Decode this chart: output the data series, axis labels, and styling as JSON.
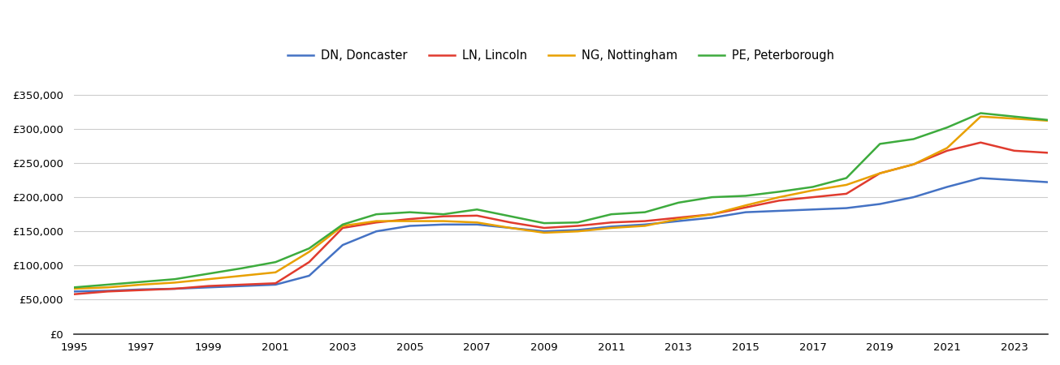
{
  "legend_labels": [
    "DN, Doncaster",
    "LN, Lincoln",
    "NG, Nottingham",
    "PE, Peterborough"
  ],
  "legend_colors": [
    "#4472c4",
    "#e03b2e",
    "#e8a000",
    "#3dab3d"
  ],
  "years": [
    1995,
    1996,
    1997,
    1998,
    1999,
    2000,
    2001,
    2002,
    2003,
    2004,
    2005,
    2006,
    2007,
    2008,
    2009,
    2010,
    2011,
    2012,
    2013,
    2014,
    2015,
    2016,
    2017,
    2018,
    2019,
    2020,
    2021,
    2022,
    2023,
    2024
  ],
  "DN": [
    62000,
    63000,
    65000,
    66000,
    68000,
    70000,
    72000,
    85000,
    130000,
    150000,
    158000,
    160000,
    160000,
    155000,
    150000,
    152000,
    157000,
    160000,
    165000,
    170000,
    178000,
    180000,
    182000,
    184000,
    190000,
    200000,
    215000,
    228000,
    225000,
    222000
  ],
  "LN": [
    58000,
    62000,
    64000,
    66000,
    70000,
    72000,
    74000,
    105000,
    155000,
    163000,
    168000,
    172000,
    173000,
    163000,
    155000,
    158000,
    163000,
    165000,
    170000,
    175000,
    185000,
    195000,
    200000,
    205000,
    235000,
    248000,
    268000,
    280000,
    268000,
    265000
  ],
  "NG": [
    66000,
    68000,
    72000,
    75000,
    80000,
    85000,
    90000,
    120000,
    158000,
    165000,
    165000,
    165000,
    163000,
    155000,
    148000,
    150000,
    155000,
    158000,
    168000,
    175000,
    188000,
    200000,
    210000,
    218000,
    235000,
    248000,
    272000,
    318000,
    315000,
    312000
  ],
  "PE": [
    68000,
    72000,
    76000,
    80000,
    88000,
    96000,
    105000,
    125000,
    160000,
    175000,
    178000,
    175000,
    182000,
    172000,
    162000,
    163000,
    175000,
    178000,
    192000,
    200000,
    202000,
    208000,
    215000,
    228000,
    278000,
    285000,
    302000,
    323000,
    318000,
    313000
  ],
  "ylim": [
    0,
    375000
  ],
  "yticks": [
    0,
    50000,
    100000,
    150000,
    200000,
    250000,
    300000,
    350000
  ],
  "xlim": [
    1995,
    2024
  ],
  "xticks": [
    1995,
    1997,
    1999,
    2001,
    2003,
    2005,
    2007,
    2009,
    2011,
    2013,
    2015,
    2017,
    2019,
    2021,
    2023
  ],
  "background_color": "#ffffff",
  "grid_color": "#cccccc",
  "line_width": 1.8
}
